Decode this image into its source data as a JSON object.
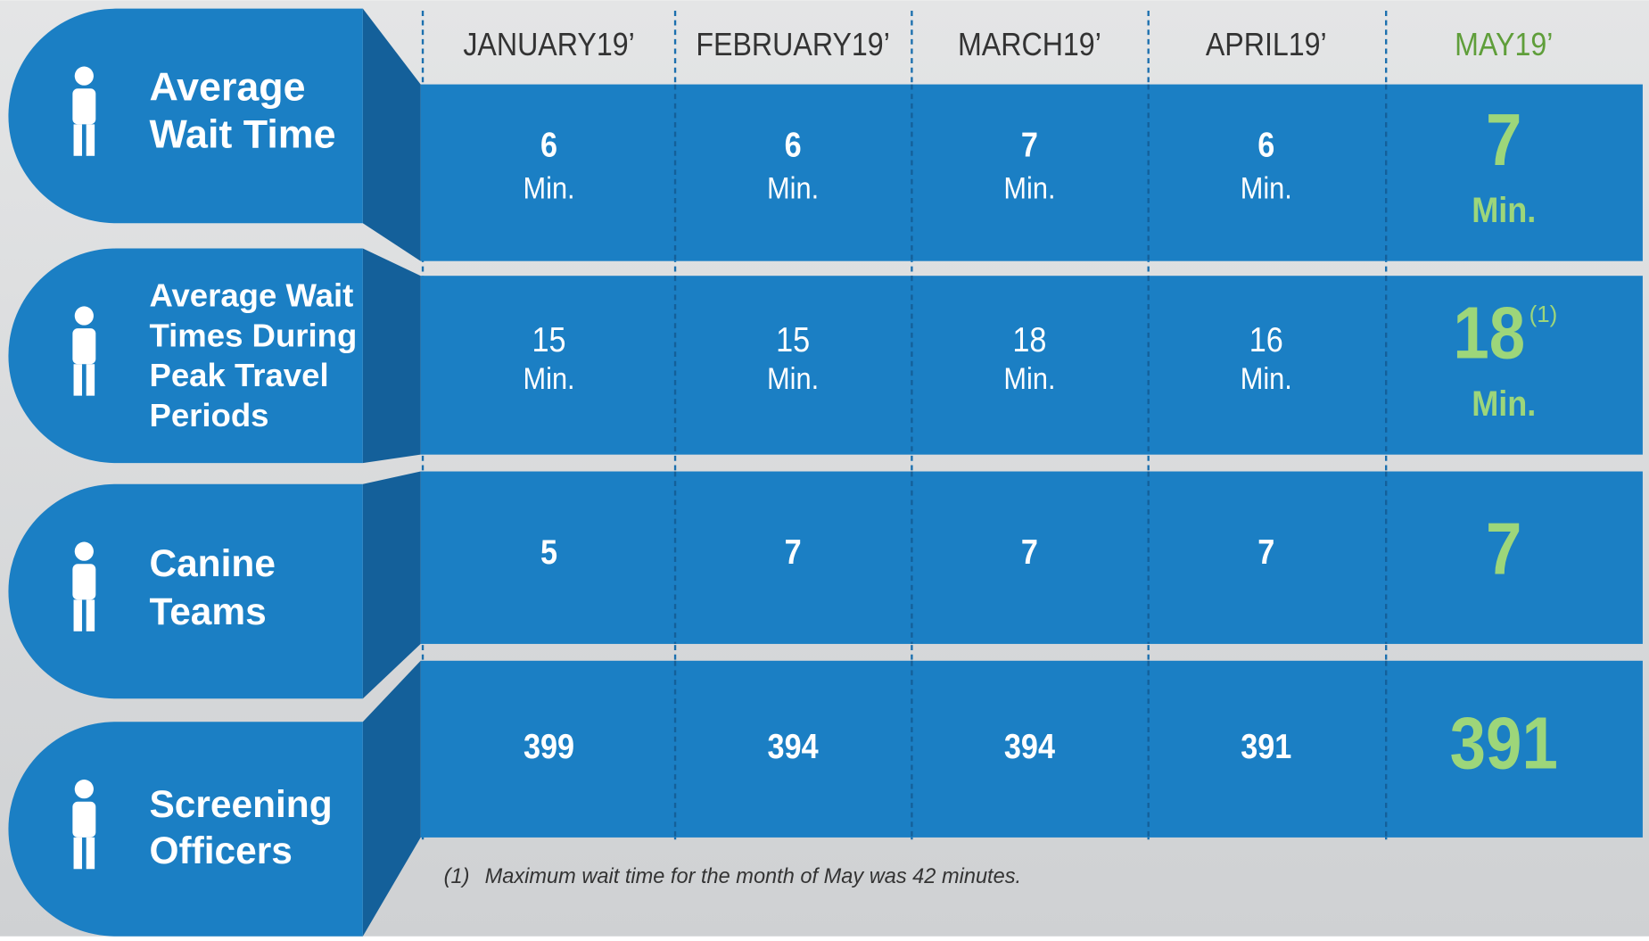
{
  "table": {
    "columns": [
      "JANUARY19’",
      "FEBRUARY19’",
      "MARCH19’",
      "APRIL19’",
      "MAY19’"
    ],
    "rows": [
      {
        "label": [
          "Average",
          "Wait Time"
        ],
        "cells": [
          {
            "value": 6,
            "unit": "Min."
          },
          {
            "value": 6,
            "unit": "Min."
          },
          {
            "value": 7,
            "unit": "Min."
          },
          {
            "value": 6,
            "unit": "Min."
          },
          {
            "value": 7,
            "unit": "Min."
          }
        ]
      },
      {
        "label": [
          "Average Wait",
          "Times During",
          "Peak Travel",
          "Periods"
        ],
        "cells": [
          {
            "value": 15,
            "unit": "Min."
          },
          {
            "value": 15,
            "unit": "Min."
          },
          {
            "value": 18,
            "unit": "Min."
          },
          {
            "value": 16,
            "unit": "Min."
          },
          {
            "value": 18,
            "unit": "Min.",
            "note": "(1)"
          }
        ]
      },
      {
        "label": [
          "Canine",
          "Teams"
        ],
        "cells": [
          {
            "value": 5
          },
          {
            "value": 7
          },
          {
            "value": 7
          },
          {
            "value": 7
          },
          {
            "value": 7
          }
        ]
      },
      {
        "label": [
          "Screening",
          "Officers"
        ],
        "cells": [
          {
            "value": 399
          },
          {
            "value": 394
          },
          {
            "value": 394
          },
          {
            "value": 391
          },
          {
            "value": 391
          }
        ]
      }
    ]
  },
  "footnote": {
    "marker": "(1)",
    "text": "Maximum wait time for the month of May was 42 minutes."
  }
}
